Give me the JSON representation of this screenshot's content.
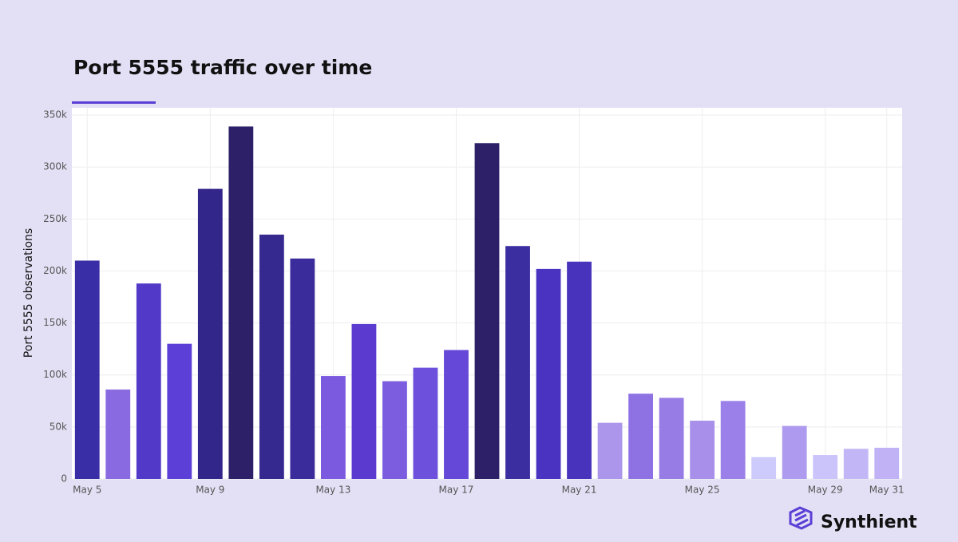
{
  "chart_data": {
    "type": "bar",
    "title": "Port 5555 traffic over time",
    "y_label": "Port 5555 observations",
    "categories": [
      "May 5",
      null,
      null,
      null,
      "May 9",
      null,
      null,
      null,
      "May 13",
      null,
      null,
      null,
      "May 17",
      null,
      null,
      null,
      "May 21",
      null,
      null,
      null,
      "May 25",
      null,
      null,
      null,
      "May 29",
      null,
      "May 31"
    ],
    "values": [
      210000,
      86000,
      188000,
      130000,
      279000,
      339000,
      235000,
      212000,
      99000,
      149000,
      94000,
      107000,
      124000,
      323000,
      224000,
      202000,
      209000,
      54000,
      82000,
      78000,
      56000,
      75000,
      21000,
      51000,
      23000,
      29000,
      30000
    ],
    "colors": [
      "#3a2ea6",
      "#8a6ae0",
      "#5239c8",
      "#5b3fd6",
      "#33268a",
      "#2d2068",
      "#35288f",
      "#3a2c9a",
      "#7b5ae0",
      "#5a3acf",
      "#7c5de0",
      "#6d50dc",
      "#6548d8",
      "#2d2068",
      "#3b2ea0",
      "#4a33c0",
      "#4834bc",
      "#ab96ec",
      "#8e72e4",
      "#977ce6",
      "#a88fea",
      "#9a80e8",
      "#cdcafc",
      "#ae9bef",
      "#cbc4fa",
      "#c3b6f6",
      "#c0b2f5"
    ],
    "ylim": [
      0,
      357000
    ],
    "yticks": [
      0,
      {
        "value": 50000,
        "label": "50k"
      },
      {
        "value": 100000,
        "label": "100k"
      },
      {
        "value": 150000,
        "label": "150k"
      },
      {
        "value": 200000,
        "label": "200k"
      },
      {
        "value": 250000,
        "label": "250k"
      },
      {
        "value": 300000,
        "label": "300k"
      },
      {
        "value": 350000,
        "label": "350k"
      }
    ],
    "grid": true
  },
  "brand": "Synthient"
}
